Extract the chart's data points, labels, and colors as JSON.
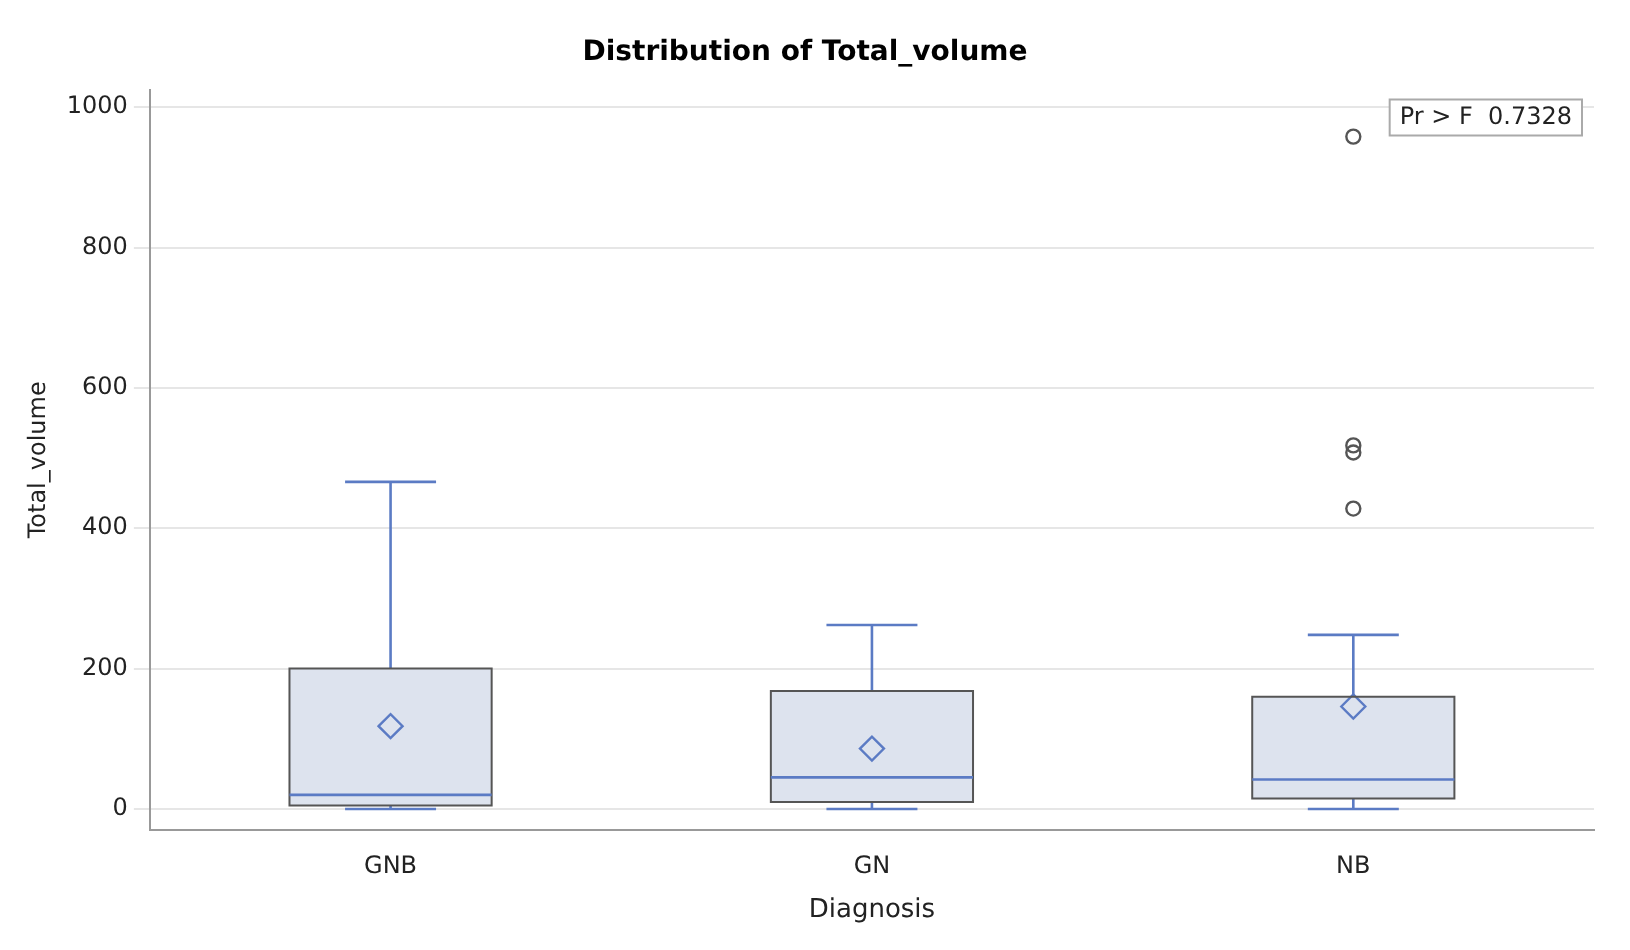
{
  "chart_data": {
    "type": "box",
    "title": "Distribution of Total_volume",
    "xlabel": "Diagnosis",
    "ylabel": "Total_volume",
    "categories": [
      "GNB",
      "GN",
      "NB"
    ],
    "boxes": [
      {
        "low": 0,
        "q1": 5,
        "median": 20,
        "q3": 200,
        "high": 466,
        "mean": 118
      },
      {
        "low": 0,
        "q1": 10,
        "median": 45,
        "q3": 168,
        "high": 262,
        "mean": 86
      },
      {
        "low": 0,
        "q1": 15,
        "median": 42,
        "q3": 160,
        "high": 248,
        "mean": 146,
        "outliers": [
          958,
          518,
          508,
          428
        ]
      }
    ],
    "color": "#dde3ee",
    "ylim": [
      -30,
      1025
    ],
    "yticks": [
      0,
      200,
      400,
      600,
      800,
      1000
    ],
    "grid": "y",
    "annotations": [
      "Pr > F  0.7328"
    ]
  }
}
